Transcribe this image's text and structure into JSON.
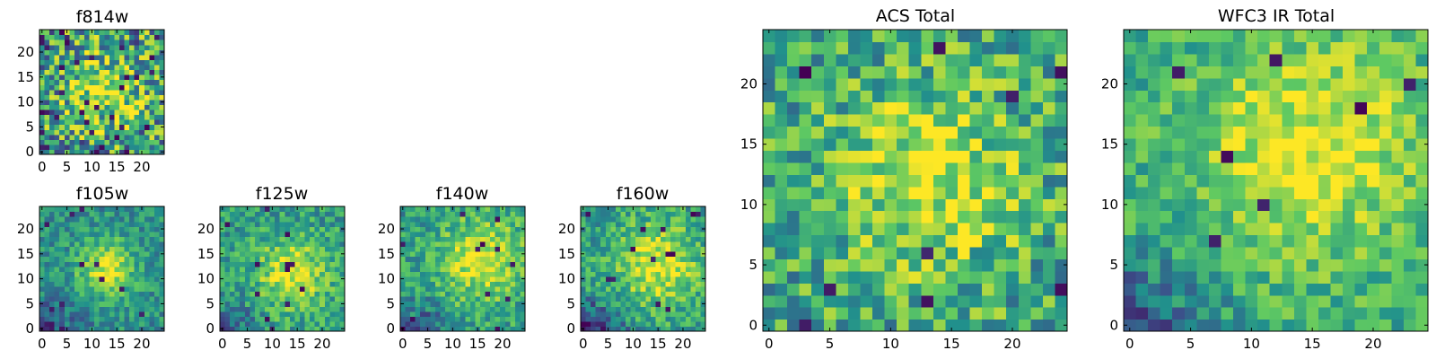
{
  "figure": {
    "description": "Grid of heatmap panels: HST filter images and totals",
    "colormap": [
      "#440154",
      "#3b528b",
      "#21918c",
      "#5ec962",
      "#fde725"
    ]
  },
  "chart_data": [
    {
      "type": "heatmap",
      "id": "f814w",
      "title": "f814w",
      "size": 25,
      "xlim": [
        0,
        25
      ],
      "ylim": [
        0,
        25
      ],
      "xticks": [
        0,
        5,
        10,
        15,
        20
      ],
      "yticks": [
        0,
        5,
        10,
        15,
        20
      ],
      "seed": 11,
      "blob": {
        "x": 13,
        "y": 12,
        "sigma": 5,
        "amp": 0.35
      },
      "noise": 0.8,
      "dark_frac": 0.05,
      "low_region": 0.0,
      "base": 0.55
    },
    {
      "type": "heatmap",
      "id": "f105w",
      "title": "f105w",
      "size": 25,
      "xlim": [
        0,
        25
      ],
      "ylim": [
        0,
        25
      ],
      "xticks": [
        0,
        5,
        10,
        15,
        20
      ],
      "yticks": [
        0,
        5,
        10,
        15,
        20
      ],
      "seed": 23,
      "blob": {
        "x": 13,
        "y": 12,
        "sigma": 4,
        "amp": 0.45
      },
      "noise": 0.35,
      "dark_frac": 0.01,
      "low_region": 0.35,
      "base": 0.5
    },
    {
      "type": "heatmap",
      "id": "f125w",
      "title": "f125w",
      "size": 25,
      "xlim": [
        0,
        25
      ],
      "ylim": [
        0,
        25
      ],
      "xticks": [
        0,
        5,
        10,
        15,
        20
      ],
      "yticks": [
        0,
        5,
        10,
        15,
        20
      ],
      "seed": 37,
      "blob": {
        "x": 14,
        "y": 11,
        "sigma": 5,
        "amp": 0.4
      },
      "noise": 0.4,
      "dark_frac": 0.02,
      "low_region": 0.3,
      "base": 0.55
    },
    {
      "type": "heatmap",
      "id": "f140w",
      "title": "f140w",
      "size": 25,
      "xlim": [
        0,
        25
      ],
      "ylim": [
        0,
        25
      ],
      "xticks": [
        0,
        5,
        10,
        15,
        20
      ],
      "yticks": [
        0,
        5,
        10,
        15,
        20
      ],
      "seed": 51,
      "blob": {
        "x": 16,
        "y": 14,
        "sigma": 6,
        "amp": 0.4
      },
      "noise": 0.4,
      "dark_frac": 0.02,
      "low_region": 0.4,
      "base": 0.55
    },
    {
      "type": "heatmap",
      "id": "f160w",
      "title": "f160w",
      "size": 25,
      "xlim": [
        0,
        25
      ],
      "ylim": [
        0,
        25
      ],
      "xticks": [
        0,
        5,
        10,
        15,
        20
      ],
      "yticks": [
        0,
        5,
        10,
        15,
        20
      ],
      "seed": 67,
      "blob": {
        "x": 15,
        "y": 13,
        "sigma": 6,
        "amp": 0.4
      },
      "noise": 0.4,
      "dark_frac": 0.02,
      "low_region": 0.45,
      "base": 0.55
    },
    {
      "type": "heatmap",
      "id": "acs-total",
      "title": "ACS Total",
      "size": 25,
      "xlim": [
        0,
        25
      ],
      "ylim": [
        0,
        25
      ],
      "xticks": [
        0,
        5,
        10,
        15,
        20
      ],
      "yticks": [
        0,
        5,
        10,
        15,
        20
      ],
      "seed": 79,
      "blob": {
        "x": 13,
        "y": 12,
        "sigma": 5,
        "amp": 0.35
      },
      "noise": 0.55,
      "dark_frac": 0.02,
      "low_region": 0.0,
      "base": 0.6
    },
    {
      "type": "heatmap",
      "id": "wfc3-ir-total",
      "title": "WFC3 IR Total",
      "size": 25,
      "xlim": [
        0,
        25
      ],
      "ylim": [
        0,
        25
      ],
      "xticks": [
        0,
        5,
        10,
        15,
        20
      ],
      "yticks": [
        0,
        5,
        10,
        15,
        20
      ],
      "seed": 97,
      "blob": {
        "x": 15,
        "y": 15,
        "sigma": 7,
        "amp": 0.35
      },
      "noise": 0.35,
      "dark_frac": 0.01,
      "low_region": 0.35,
      "base": 0.6
    }
  ]
}
